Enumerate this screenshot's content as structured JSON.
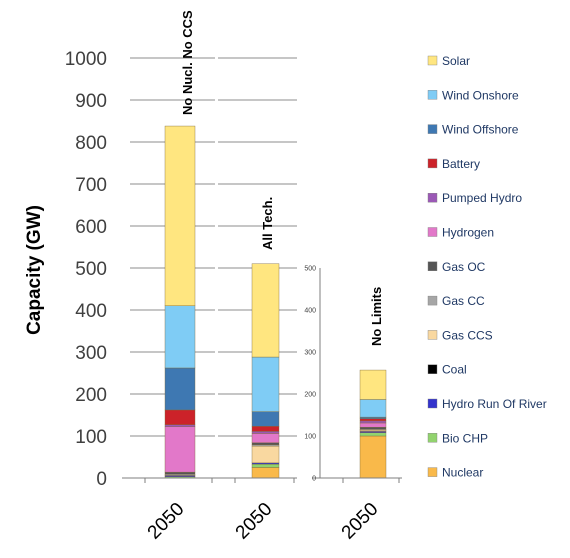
{
  "chart_data": {
    "type": "bar",
    "stacked": true,
    "ylabel": "Capacity (GW)",
    "legend_position": "right",
    "series": [
      {
        "name": "Solar",
        "color": "#FFE680"
      },
      {
        "name": "Wind Onshore",
        "color": "#7FCCF5"
      },
      {
        "name": "Wind Offshore",
        "color": "#3E78B2"
      },
      {
        "name": "Battery",
        "color": "#CC2229"
      },
      {
        "name": "Pumped Hydro",
        "color": "#9B59B6"
      },
      {
        "name": "Hydrogen",
        "color": "#E278C9"
      },
      {
        "name": "Gas OC",
        "color": "#555555"
      },
      {
        "name": "Gas CC",
        "color": "#A6A6A6"
      },
      {
        "name": "Gas CCS",
        "color": "#F9D8A0"
      },
      {
        "name": "Coal",
        "color": "#000000"
      },
      {
        "name": "Hydro Run Of River",
        "color": "#3333CC"
      },
      {
        "name": "Bio CHP",
        "color": "#92D36E"
      },
      {
        "name": "Nuclear",
        "color": "#F9B94A"
      }
    ],
    "panels": [
      {
        "scenario": "No Nucl. No CCS",
        "category": "2050",
        "ylim": [
          0,
          1000
        ],
        "yticks": [
          0,
          100,
          200,
          300,
          400,
          500,
          600,
          700,
          800,
          900,
          1000
        ],
        "values": {
          "Nuclear": 0,
          "Bio CHP": 3,
          "Hydro Run Of River": 3,
          "Coal": 0,
          "Gas CCS": 0,
          "Gas CC": 3,
          "Gas OC": 5,
          "Hydrogen": 108,
          "Pumped Hydro": 5,
          "Battery": 35,
          "Wind Offshore": 100,
          "Wind Onshore": 148,
          "Solar": 428
        }
      },
      {
        "scenario": "All Tech.",
        "category": "2050",
        "ylim": [
          0,
          1000
        ],
        "yticks": [
          0,
          100,
          200,
          300,
          400,
          500,
          600,
          700,
          800,
          900,
          1000
        ],
        "values": {
          "Nuclear": 25,
          "Bio CHP": 8,
          "Hydro Run Of River": 3,
          "Coal": 0,
          "Gas CCS": 40,
          "Gas CC": 3,
          "Gas OC": 5,
          "Hydrogen": 22,
          "Pumped Hydro": 5,
          "Battery": 12,
          "Wind Offshore": 35,
          "Wind Onshore": 130,
          "Solar": 222
        }
      },
      {
        "scenario": "No Limits",
        "category": "2050",
        "ylim": [
          0,
          500
        ],
        "yticks": [
          0,
          25,
          50,
          75,
          100,
          125,
          150,
          175,
          200,
          225,
          250,
          275,
          300,
          325,
          350,
          375,
          400,
          425,
          450,
          475,
          500
        ],
        "values": {
          "Nuclear": 100,
          "Bio CHP": 8,
          "Hydro Run Of River": 3,
          "Coal": 0,
          "Gas CCS": 3,
          "Gas CC": 2,
          "Gas OC": 5,
          "Hydrogen": 10,
          "Pumped Hydro": 5,
          "Battery": 5,
          "Wind Offshore": 4,
          "Wind Onshore": 42,
          "Solar": 70
        }
      }
    ]
  }
}
